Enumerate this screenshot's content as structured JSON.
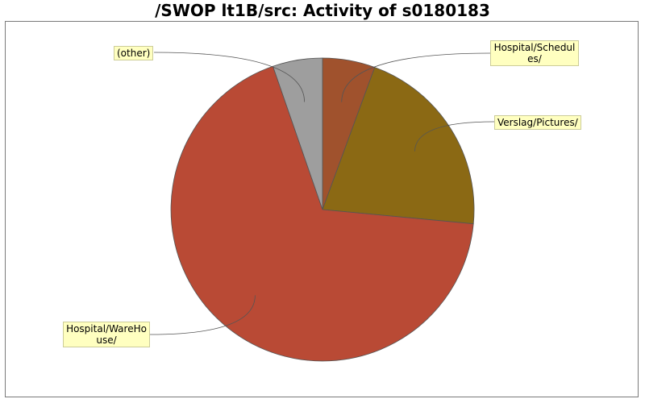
{
  "chart_data": {
    "type": "pie",
    "title": "/SWOP lt1B/src: Activity of s0180183",
    "slices": [
      {
        "label": "Hospital/Schedules/",
        "value": 5.6,
        "color": "#a0522d"
      },
      {
        "label": "Verslag/Pictures/",
        "value": 20.9,
        "color": "#8b6914"
      },
      {
        "label": "Hospital/WareHouse/",
        "value": 68.2,
        "color": "#b94a35"
      },
      {
        "label": "(other)",
        "value": 5.3,
        "color": "#9e9e9e"
      }
    ],
    "legend": "callout labels"
  }
}
